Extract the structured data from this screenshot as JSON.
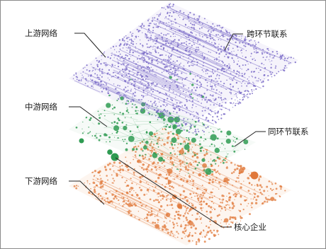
{
  "labels": {
    "upstream": "上游网络",
    "midstream": "中游网络",
    "downstream": "下游网络",
    "cross_link": "跨环节联系",
    "same_link": "同环节联系",
    "core_firm": "核心企业"
  },
  "colors": {
    "upstream": "#7b6cc8",
    "midstream": "#2f9b52",
    "downstream": "#e0783a",
    "leader": "#222222",
    "frame": "#8a8a8a"
  }
}
